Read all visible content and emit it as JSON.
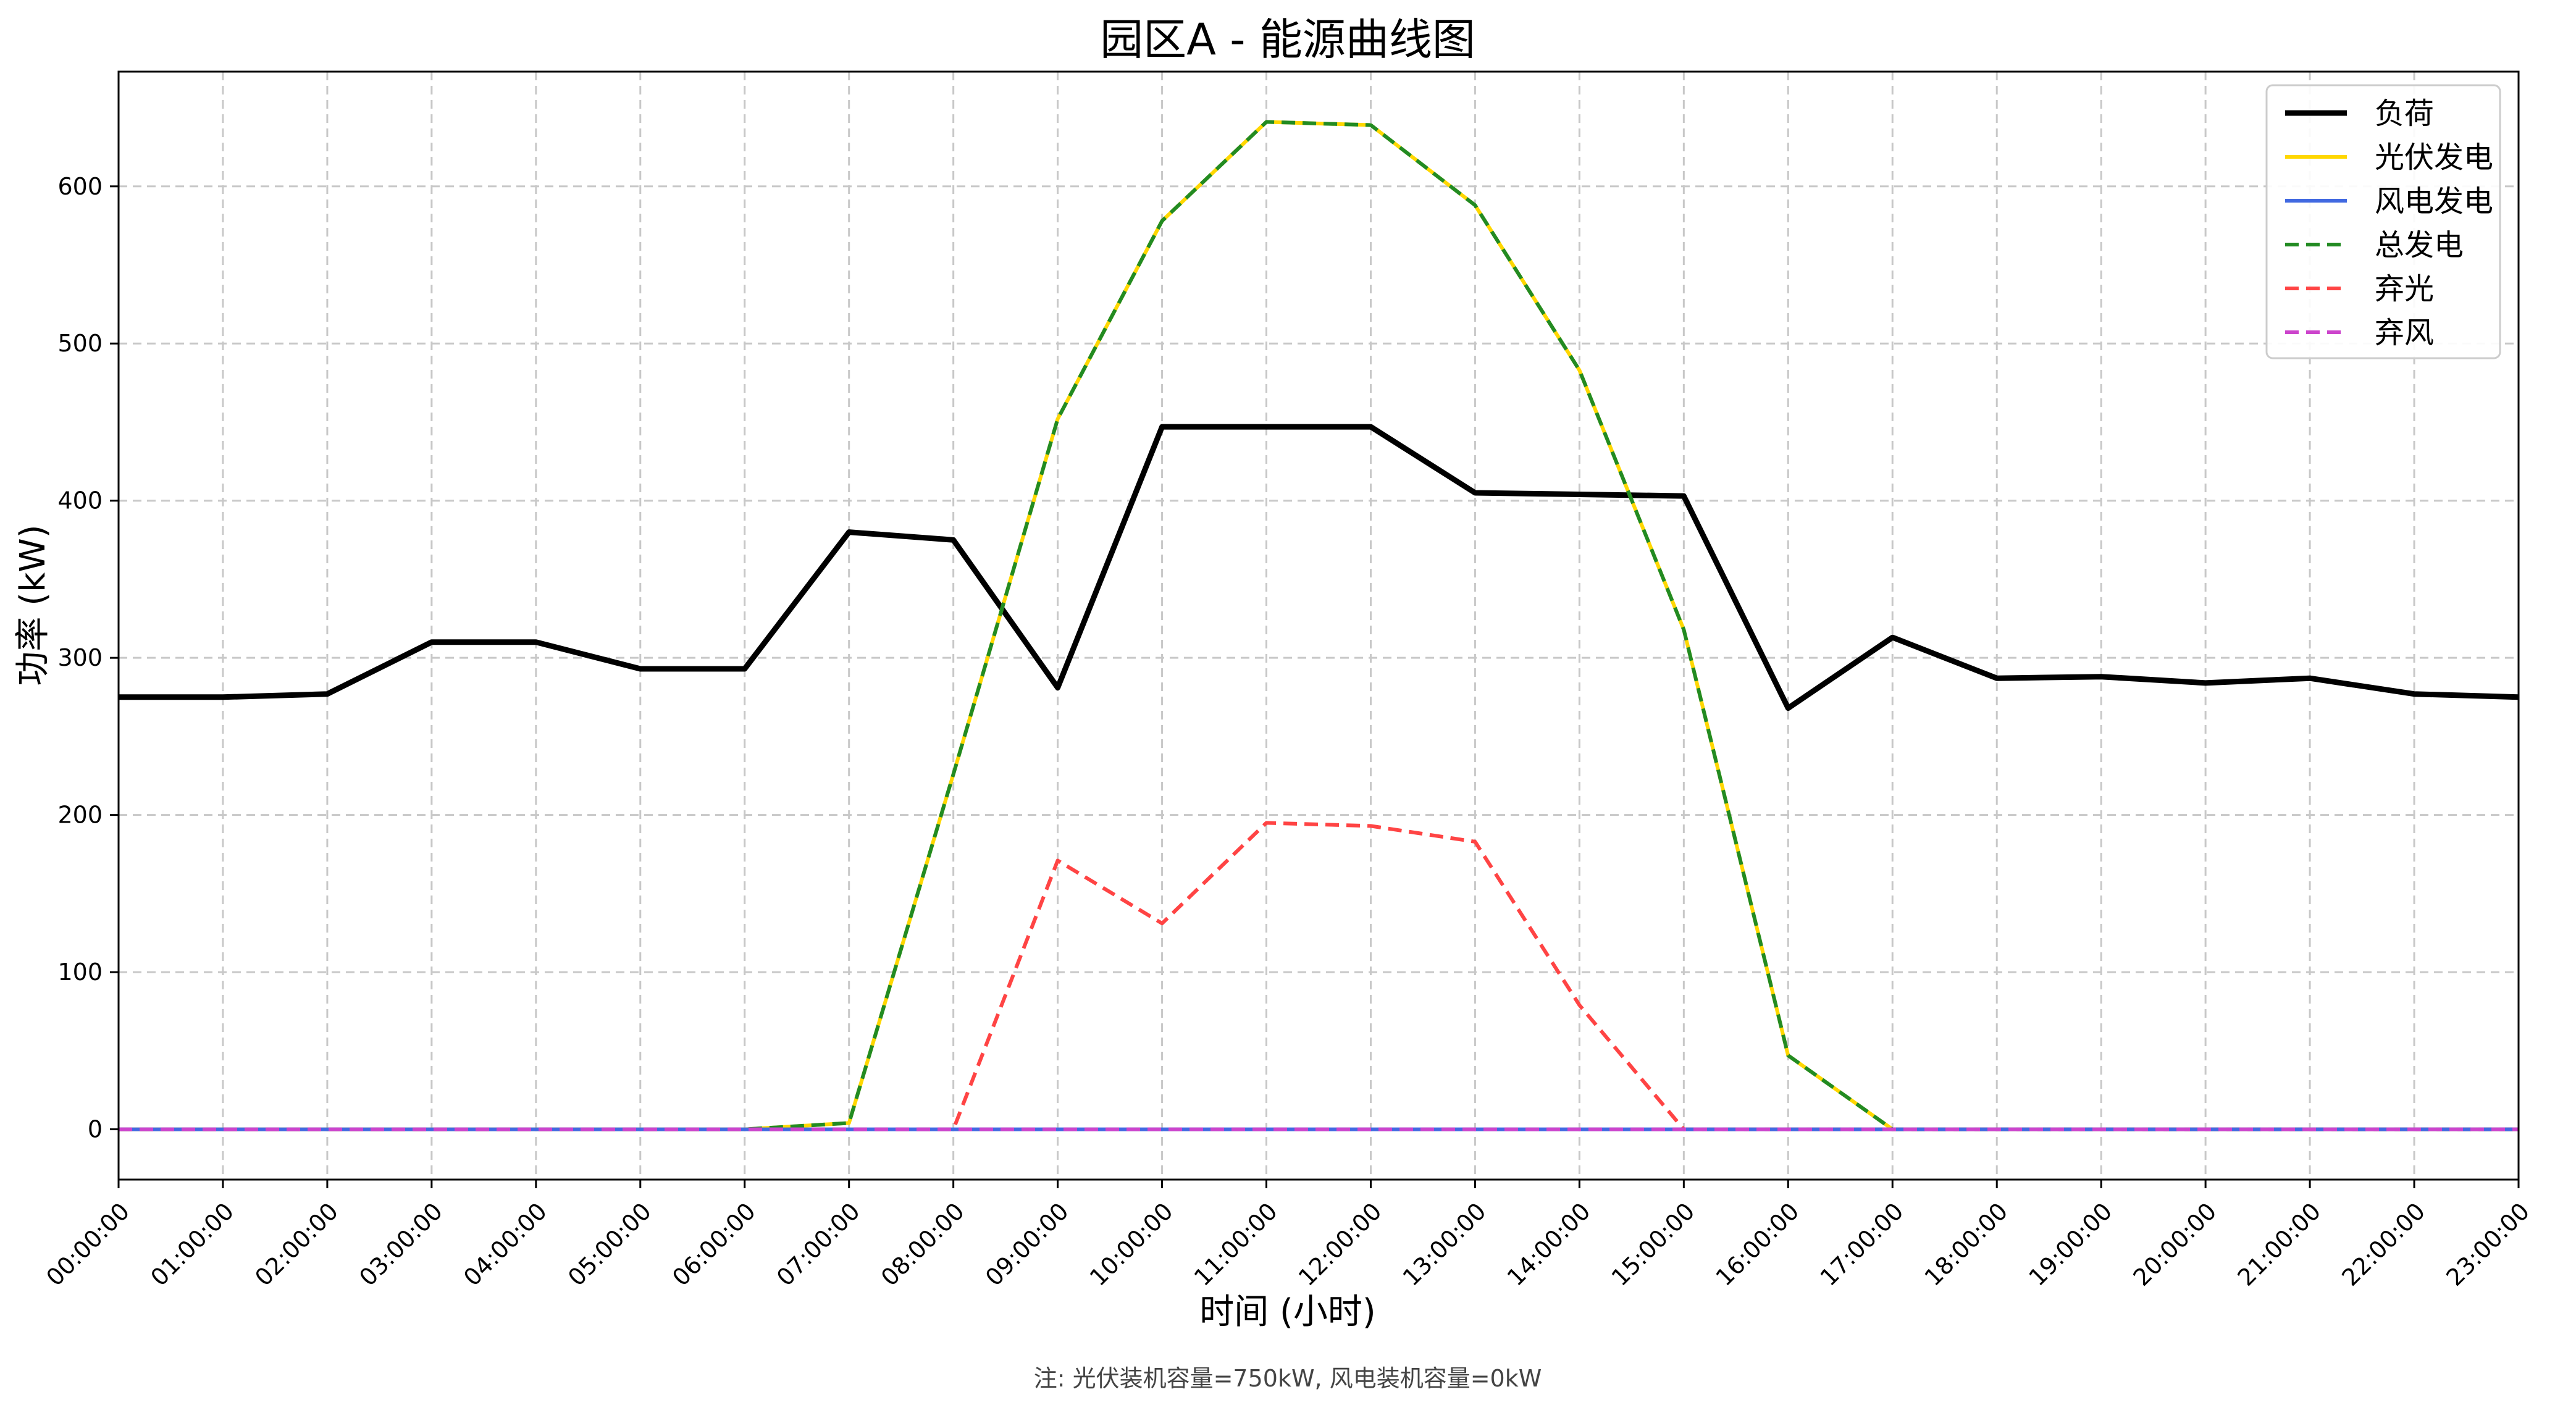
{
  "chart_data": {
    "type": "line",
    "title": "园区A - 能源曲线图",
    "xlabel": "时间 (小时)",
    "ylabel": "功率 (kW)",
    "note": "注: 光伏装机容量=750kW, 风电装机容量=0kW",
    "x": [
      "00:00:00",
      "01:00:00",
      "02:00:00",
      "03:00:00",
      "04:00:00",
      "05:00:00",
      "06:00:00",
      "07:00:00",
      "08:00:00",
      "09:00:00",
      "10:00:00",
      "11:00:00",
      "12:00:00",
      "13:00:00",
      "14:00:00",
      "15:00:00",
      "16:00:00",
      "17:00:00",
      "18:00:00",
      "19:00:00",
      "20:00:00",
      "21:00:00",
      "22:00:00",
      "23:00:00"
    ],
    "ylim": [
      -32,
      673
    ],
    "yticks": [
      0,
      100,
      200,
      300,
      400,
      500,
      600
    ],
    "grid": true,
    "legend_position": "top-right",
    "series": [
      {
        "name": "负荷",
        "color": "#000000",
        "style": "solid",
        "width": 9,
        "values": [
          275,
          275,
          277,
          310,
          310,
          293,
          293,
          380,
          375,
          281,
          447,
          447,
          447,
          405,
          404,
          403,
          268,
          313,
          287,
          288,
          284,
          287,
          277,
          275
        ]
      },
      {
        "name": "光伏发电",
        "color": "#FFD700",
        "style": "solid",
        "width": 6,
        "values": [
          0,
          0,
          0,
          0,
          0,
          0,
          0,
          4,
          226,
          452,
          578,
          641,
          639,
          588,
          483,
          318,
          47,
          0,
          0,
          0,
          0,
          0,
          0,
          0
        ]
      },
      {
        "name": "风电发电",
        "color": "#4169E1",
        "style": "solid",
        "width": 6,
        "values": [
          0,
          0,
          0,
          0,
          0,
          0,
          0,
          0,
          0,
          0,
          0,
          0,
          0,
          0,
          0,
          0,
          0,
          0,
          0,
          0,
          0,
          0,
          0,
          0
        ]
      },
      {
        "name": "总发电",
        "color": "#228B22",
        "style": "dashed",
        "width": 6,
        "values": [
          0,
          0,
          0,
          0,
          0,
          0,
          0,
          4,
          226,
          452,
          578,
          641,
          639,
          588,
          483,
          318,
          47,
          0,
          0,
          0,
          0,
          0,
          0,
          0
        ]
      },
      {
        "name": "弃光",
        "color": "#FF4444",
        "style": "dashed",
        "width": 6,
        "values": [
          0,
          0,
          0,
          0,
          0,
          0,
          0,
          0,
          0,
          171,
          131,
          195,
          193,
          183,
          79,
          0,
          0,
          0,
          0,
          0,
          0,
          0,
          0,
          0
        ]
      },
      {
        "name": "弃风",
        "color": "#CC44CC",
        "style": "dashed",
        "width": 6,
        "values": [
          0,
          0,
          0,
          0,
          0,
          0,
          0,
          0,
          0,
          0,
          0,
          0,
          0,
          0,
          0,
          0,
          0,
          0,
          0,
          0,
          0,
          0,
          0,
          0
        ]
      }
    ]
  }
}
